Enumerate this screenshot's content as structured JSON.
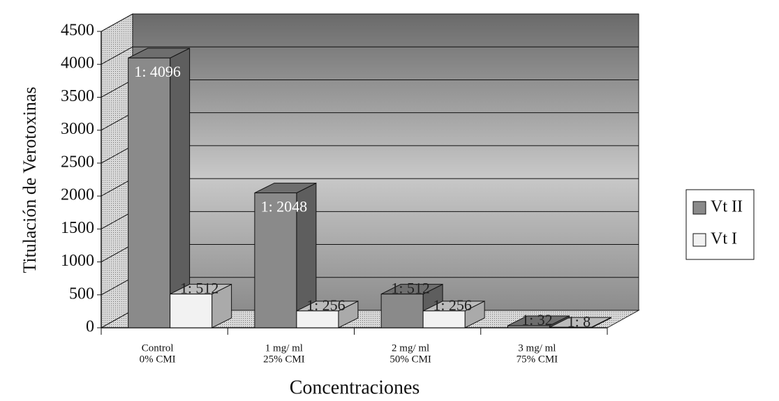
{
  "chart_data": {
    "type": "bar3d",
    "y_label": "Titulación de Verotoxinas",
    "x_label": "Concentraciones",
    "categories": [
      [
        "Control",
        "0% CMI"
      ],
      [
        "1 mg/ ml",
        "25% CMI"
      ],
      [
        "2 mg/ ml",
        "50% CMI"
      ],
      [
        "3 mg/ ml",
        "75% CMI"
      ]
    ],
    "series": [
      {
        "name": "Vt II",
        "color": "#8a8a8a",
        "values": [
          4096,
          2048,
          512,
          32
        ],
        "value_labels": [
          "1: 4096",
          "1: 2048",
          "1: 512",
          "1: 32"
        ]
      },
      {
        "name": "Vt I",
        "color": "#f2f2f2",
        "values": [
          512,
          256,
          256,
          8
        ],
        "value_labels": [
          "1: 512",
          "1: 256",
          "1: 256",
          "1: 8"
        ]
      }
    ],
    "ylim": [
      0,
      4500
    ],
    "yticks": [
      0,
      500,
      1000,
      1500,
      2000,
      2500,
      3000,
      3500,
      4000,
      4500
    ],
    "grid": true,
    "legend": "right"
  }
}
